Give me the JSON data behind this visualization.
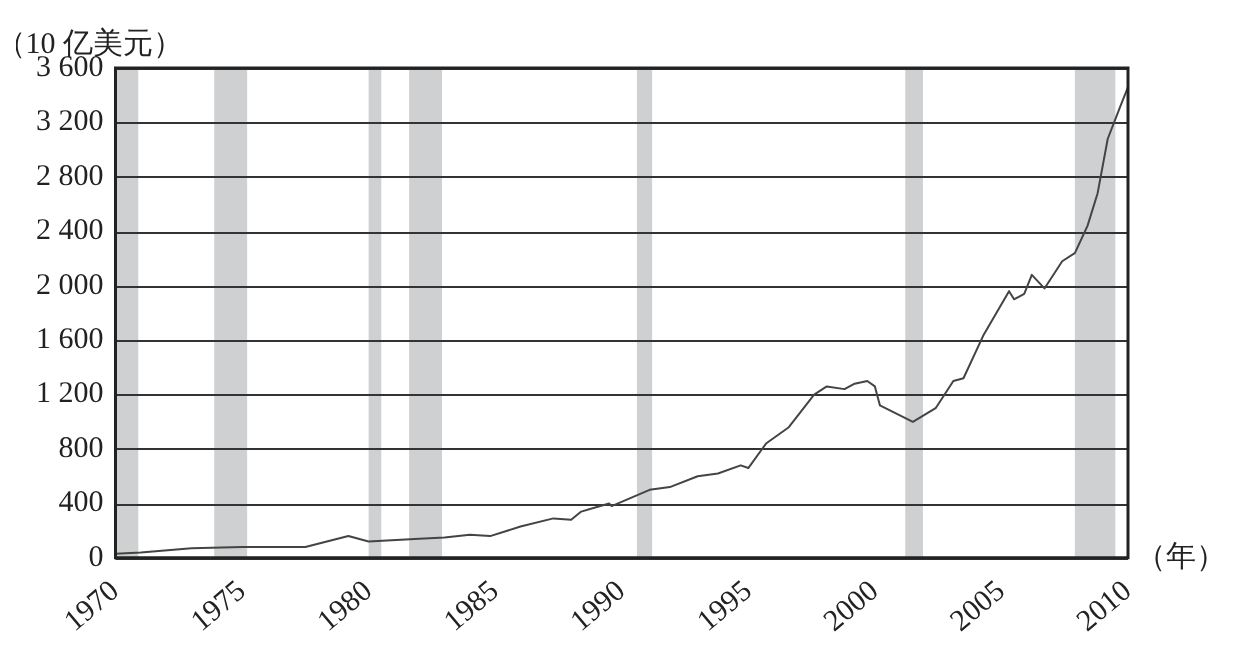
{
  "chart_data": {
    "type": "line",
    "ylabel": "（10 亿美元）",
    "xlabel": "（年）",
    "x": [
      1970,
      1971,
      1973,
      1975,
      1977.5,
      1979.2,
      1980,
      1982,
      1983,
      1984,
      1984.8,
      1986,
      1987.3,
      1988,
      1988.4,
      1989.5,
      1989.6,
      1991.1,
      1991.9,
      1993,
      1993.8,
      1994.7,
      1995,
      1995.7,
      1996.6,
      1997.6,
      1998.1,
      1998.8,
      1999.2,
      1999.7,
      2000,
      2000.2,
      2001.5,
      2002.4,
      2003.1,
      2003.5,
      2004.3,
      2005.3,
      2005.5,
      2005.9,
      2006.2,
      2006.7,
      2007.4,
      2007.9,
      2008.4,
      2008.8,
      2009.2,
      2009.7,
      2010
    ],
    "series": [
      {
        "color": "#444444",
        "values": [
          30,
          40,
          70,
          80,
          80,
          160,
          120,
          140,
          150,
          170,
          160,
          230,
          290,
          280,
          340,
          400,
          380,
          500,
          520,
          600,
          620,
          680,
          660,
          840,
          960,
          1200,
          1260,
          1240,
          1280,
          1300,
          1260,
          1120,
          1000,
          1100,
          1300,
          1320,
          1640,
          1960,
          1900,
          1940,
          2080,
          1980,
          2180,
          2240,
          2440,
          2680,
          3080,
          3320,
          3460
        ]
      }
    ],
    "bands": [
      {
        "axis": "x",
        "from": 1970,
        "to": 1970.9,
        "color": "#cfd0d2"
      },
      {
        "axis": "x",
        "from": 1973.9,
        "to": 1975.2,
        "color": "#cfd0d2"
      },
      {
        "axis": "x",
        "from": 1980,
        "to": 1980.5,
        "color": "#cfd0d2"
      },
      {
        "axis": "x",
        "from": 1981.6,
        "to": 1982.9,
        "color": "#cfd0d2"
      },
      {
        "axis": "x",
        "from": 1990.6,
        "to": 1991.2,
        "color": "#cfd0d2"
      },
      {
        "axis": "x",
        "from": 2001.2,
        "to": 2001.9,
        "color": "#cfd0d2"
      },
      {
        "axis": "x",
        "from": 2007.9,
        "to": 2009.5,
        "color": "#cfd0d2"
      }
    ],
    "xlim": [
      1970,
      2010
    ],
    "xticks": [
      1970,
      1975,
      1980,
      1985,
      1990,
      1995,
      2000,
      2005,
      2010
    ],
    "ylim": [
      0,
      3600
    ],
    "yticks": [
      0,
      400,
      {
        "value": 800,
        "label": "800"
      },
      {
        "value": 1200,
        "label": "1 200"
      },
      {
        "value": 1600,
        "label": "1 600"
      },
      {
        "value": 2000,
        "label": "2 000"
      },
      {
        "value": 2400,
        "label": "2 400"
      },
      {
        "value": 2800,
        "label": "2 800"
      },
      {
        "value": 3200,
        "label": "3 200"
      },
      {
        "value": 3600,
        "label": "3 600"
      }
    ],
    "grid": "y",
    "legend": false,
    "marker": "none",
    "line_style": "solid"
  }
}
